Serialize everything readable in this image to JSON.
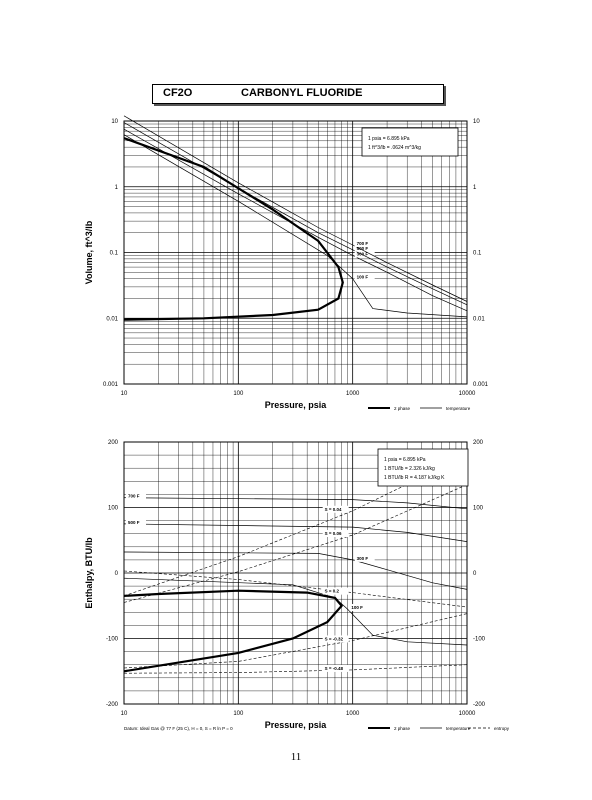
{
  "header": {
    "code": "CF2O",
    "name": "CARBONYL FLUORIDE"
  },
  "page_number": "11",
  "chart_data": [
    {
      "type": "line",
      "ylabel": "Volume, ft^3/lb",
      "xlabel": "Pressure, psia",
      "x_scale": "log",
      "y_scale": "log",
      "xlim": [
        10,
        10000
      ],
      "ylim": [
        0.001,
        10
      ],
      "x_ticks": [
        "10",
        "100",
        "1000",
        "10000"
      ],
      "y_ticks_left": [
        "0.001",
        "0.01",
        "0.1",
        "1",
        "10"
      ],
      "y_ticks_right": [
        "0.001",
        "0.01",
        "0.1",
        "1",
        "10"
      ],
      "info_box": [
        "1 psia = 6.895 kPa",
        "1 ft^3/lb = .0624 m^3/kg"
      ],
      "legend": [
        "2 phase",
        "temperature"
      ],
      "two_phase": [
        [
          10,
          0.0095
        ],
        [
          50,
          0.01
        ],
        [
          200,
          0.0112
        ],
        [
          500,
          0.0135
        ],
        [
          750,
          0.02
        ],
        [
          820,
          0.035
        ],
        [
          750,
          0.06
        ],
        [
          500,
          0.15
        ],
        [
          200,
          0.45
        ],
        [
          50,
          2.0
        ],
        [
          10,
          5.5
        ]
      ],
      "series": [
        {
          "name": "100 F",
          "points": [
            [
              10,
              6.2
            ],
            [
              100,
              0.6
            ],
            [
              600,
              0.09
            ],
            [
              1000,
              0.04
            ],
            [
              1500,
              0.014
            ],
            [
              3000,
              0.012
            ],
            [
              10000,
              0.0105
            ]
          ]
        },
        {
          "name": "300 F",
          "points": [
            [
              10,
              7.5
            ],
            [
              100,
              0.78
            ],
            [
              500,
              0.17
            ],
            [
              1000,
              0.09
            ],
            [
              2000,
              0.05
            ],
            [
              5000,
              0.022
            ],
            [
              10000,
              0.013
            ]
          ]
        },
        {
          "name": "500 F",
          "points": [
            [
              10,
              9.5
            ],
            [
              100,
              0.95
            ],
            [
              500,
              0.2
            ],
            [
              1000,
              0.11
            ],
            [
              2000,
              0.06
            ],
            [
              5000,
              0.028
            ],
            [
              10000,
              0.016
            ]
          ]
        },
        {
          "name": "700 F",
          "points": [
            [
              10,
              12
            ],
            [
              100,
              1.15
            ],
            [
              500,
              0.24
            ],
            [
              1000,
              0.13
            ],
            [
              2000,
              0.07
            ],
            [
              5000,
              0.032
            ],
            [
              10000,
              0.018
            ]
          ]
        }
      ]
    },
    {
      "type": "line",
      "ylabel": "Enthalpy, BTU/lb",
      "xlabel": "Pressure, psia",
      "x_scale": "log",
      "xlim": [
        10,
        10000
      ],
      "ylim": [
        -200,
        200
      ],
      "x_ticks": [
        "10",
        "100",
        "1000",
        "10000"
      ],
      "y_ticks_left": [
        "-200",
        "-100",
        "0",
        "100",
        "200"
      ],
      "y_ticks_right": [
        "-200",
        "-100",
        "0",
        "100",
        "200"
      ],
      "info_box": [
        "1 psia = 6.895 kPa",
        "1 BTU/lb = 2.326 kJ/kg",
        "1 BTU/lb R = 4.187 kJ/kg K"
      ],
      "legend": [
        "2 phase",
        "temperature",
        "entropy"
      ],
      "footnote": "Datum: Ideal Gas @ 77 F (25 C), H = 0, S = R ln P = 0",
      "two_phase": [
        [
          10,
          -150
        ],
        [
          100,
          -122
        ],
        [
          300,
          -100
        ],
        [
          600,
          -75
        ],
        [
          800,
          -50
        ],
        [
          700,
          -38
        ],
        [
          400,
          -30
        ],
        [
          100,
          -27
        ],
        [
          20,
          -32
        ],
        [
          10,
          -35
        ]
      ],
      "series": [
        {
          "name": "100 F",
          "points": [
            [
              10,
              -8
            ],
            [
              300,
              -18
            ],
            [
              700,
              -38
            ],
            [
              900,
              -55
            ],
            [
              1500,
              -95
            ],
            [
              3000,
              -105
            ],
            [
              10000,
              -110
            ]
          ]
        },
        {
          "name": "300 F",
          "points": [
            [
              10,
              32
            ],
            [
              500,
              30
            ],
            [
              1000,
              20
            ],
            [
              2000,
              5
            ],
            [
              5000,
              -15
            ],
            [
              10000,
              -25
            ]
          ]
        },
        {
          "name": "500 F",
          "points": [
            [
              10,
              75
            ],
            [
              1000,
              70
            ],
            [
              3000,
              62
            ],
            [
              10000,
              48
            ]
          ]
        },
        {
          "name": "700 F",
          "points": [
            [
              10,
              115
            ],
            [
              1000,
              112
            ],
            [
              3000,
              107
            ],
            [
              10000,
              98
            ]
          ]
        }
      ],
      "entropy_lines": [
        {
          "name": "S = 0.04",
          "points": [
            [
              10,
              -35
            ],
            [
              100,
              25
            ],
            [
              1000,
              95
            ],
            [
              10000,
              180
            ]
          ]
        },
        {
          "name": "S = 0.06",
          "points": [
            [
              10,
              -45
            ],
            [
              100,
              2
            ],
            [
              1000,
              58
            ],
            [
              10000,
              135
            ]
          ]
        },
        {
          "name": "S = 0.2",
          "points": [
            [
              10,
              3
            ],
            [
              100,
              -10
            ],
            [
              1000,
              -30
            ],
            [
              10000,
              -52
            ]
          ]
        },
        {
          "name": "S = -0.32",
          "points": [
            [
              10,
              -145
            ],
            [
              100,
              -135
            ],
            [
              1000,
              -103
            ],
            [
              10000,
              -62
            ]
          ]
        },
        {
          "name": "S = -0.48",
          "points": [
            [
              10,
              -153
            ],
            [
              100,
              -152
            ],
            [
              1000,
              -148
            ],
            [
              10000,
              -140
            ]
          ]
        }
      ]
    }
  ]
}
